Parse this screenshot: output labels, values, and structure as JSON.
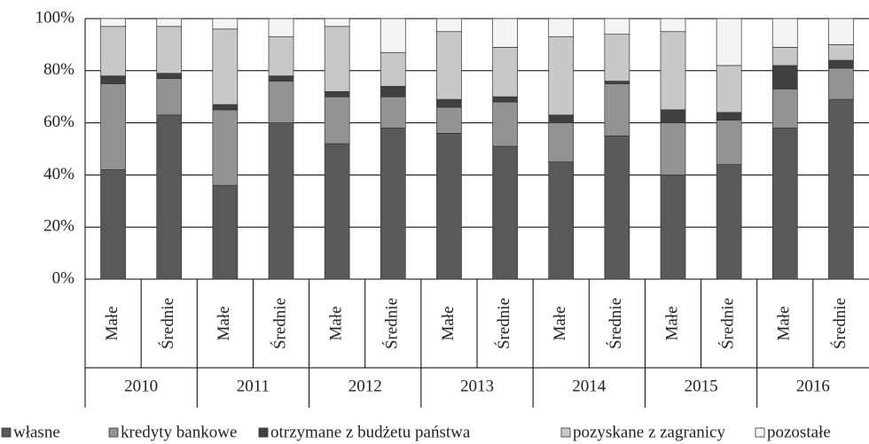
{
  "chart_data": {
    "type": "stacked_bar",
    "categories": [
      "Małe",
      "Średnie",
      "Małe",
      "Średnie",
      "Małe",
      "Średnie",
      "Małe",
      "Średnie",
      "Małe",
      "Średnie",
      "Małe",
      "Średnie",
      "Małe",
      "Średnie"
    ],
    "groups": [
      "2010",
      "2011",
      "2012",
      "2013",
      "2014",
      "2015",
      "2016"
    ],
    "series": [
      {
        "name": "własne",
        "color": "#595959",
        "values": [
          42,
          63,
          36,
          60,
          52,
          58,
          56,
          51,
          45,
          55,
          40,
          44,
          58,
          69
        ]
      },
      {
        "name": "kredyty bankowe",
        "color": "#939393",
        "values": [
          33,
          14,
          29,
          16,
          18,
          12,
          10,
          17,
          15,
          20,
          20,
          17,
          15,
          12
        ]
      },
      {
        "name": "otrzymane z budżetu państwa",
        "color": "#404040",
        "values": [
          3,
          2,
          2,
          2,
          2,
          4,
          3,
          2,
          3,
          1,
          5,
          3,
          9,
          3
        ]
      },
      {
        "name": "pozyskane z zagranicy",
        "color": "#c8c8c8",
        "values": [
          19,
          18,
          29,
          15,
          25,
          13,
          26,
          19,
          30,
          18,
          30,
          18,
          7,
          6
        ]
      },
      {
        "name": "pozostałe",
        "color": "#f4f4f4",
        "values": [
          3,
          3,
          4,
          7,
          3,
          13,
          5,
          11,
          7,
          6,
          5,
          18,
          11,
          10
        ]
      }
    ],
    "ylim": [
      0,
      100
    ],
    "yticks": [
      {
        "value": 0,
        "label": "0%"
      },
      {
        "value": 20,
        "label": "20%"
      },
      {
        "value": 40,
        "label": "40%"
      },
      {
        "value": 60,
        "label": "60%"
      },
      {
        "value": 80,
        "label": "80%"
      },
      {
        "value": 100,
        "label": "100%"
      }
    ],
    "grid": true
  }
}
